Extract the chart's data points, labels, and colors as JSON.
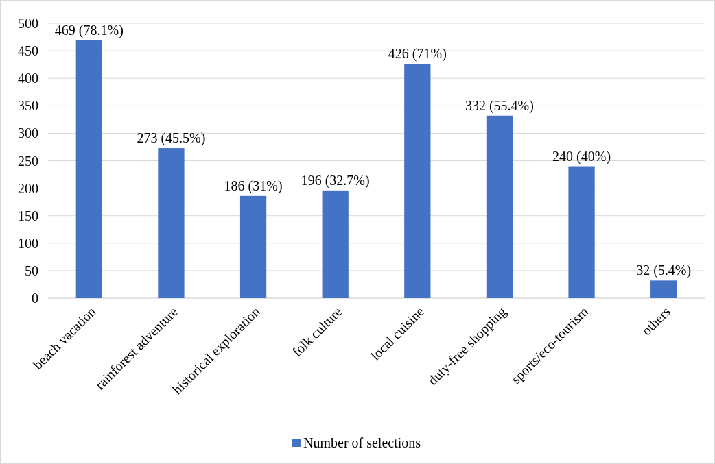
{
  "chart_data": {
    "type": "bar",
    "categories": [
      "beach vacation",
      "rainforest adventure",
      "historical exploration",
      "folk culture",
      "local cuisine",
      "duty-free shopping",
      "sports/eco-tourism",
      "others"
    ],
    "series": [
      {
        "name": "Number of selections",
        "color": "#4472c4",
        "values": [
          469,
          273,
          186,
          196,
          426,
          332,
          240,
          32
        ],
        "value_labels": [
          "469 (78.1%)",
          "273 (45.5%)",
          "186 (31%)",
          "196 (32.7%)",
          "426 (71%)",
          "332 (55.4%)",
          "240 (40%)",
          "32 (5.4%)"
        ]
      }
    ],
    "ylim": [
      0,
      500
    ],
    "yticks": [
      0,
      50,
      100,
      150,
      200,
      250,
      300,
      350,
      400,
      450,
      500
    ],
    "grid": "y",
    "legend": "bottom"
  }
}
